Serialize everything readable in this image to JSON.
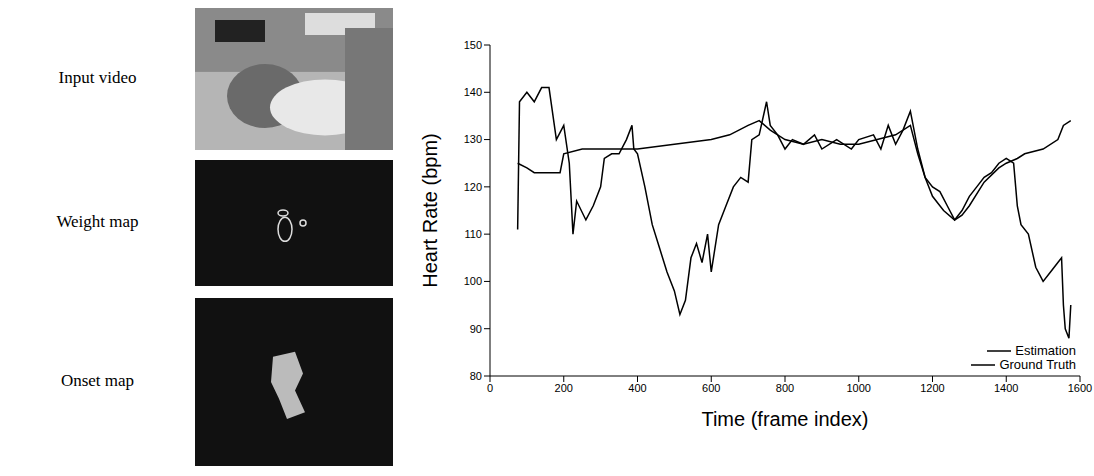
{
  "panels": [
    "Input video",
    "Weight map",
    "Onset map"
  ],
  "chart_data": {
    "type": "line",
    "x_label": "Time (frame index)",
    "y_label": "Heart Rate (bpm)",
    "xlim": [
      0,
      1600
    ],
    "xticks": [
      0,
      200,
      400,
      600,
      800,
      1000,
      1200,
      1400,
      1600
    ],
    "ylim": [
      80,
      150
    ],
    "yticks": [
      80,
      90,
      100,
      110,
      120,
      130,
      140,
      150
    ],
    "legend": "lower right",
    "grid": false,
    "series": [
      {
        "name": "Estimation",
        "color": "#000000",
        "x": [
          75,
          80,
          100,
          120,
          140,
          160,
          180,
          200,
          215,
          225,
          235,
          260,
          280,
          300,
          310,
          330,
          350,
          370,
          385,
          390,
          400,
          420,
          440,
          460,
          480,
          500,
          515,
          530,
          545,
          560,
          575,
          590,
          600,
          620,
          640,
          660,
          680,
          700,
          710,
          730,
          750,
          760,
          780,
          800,
          820,
          850,
          880,
          900,
          940,
          980,
          1000,
          1040,
          1060,
          1080,
          1100,
          1120,
          1140,
          1160,
          1180,
          1200,
          1220,
          1240,
          1260,
          1280,
          1300,
          1320,
          1340,
          1360,
          1380,
          1400,
          1420,
          1430,
          1440,
          1460,
          1480,
          1500,
          1520,
          1540,
          1550,
          1555,
          1560,
          1570,
          1575
        ],
        "values": [
          111,
          138,
          140,
          138,
          141,
          141,
          130,
          133,
          125,
          110,
          117,
          113,
          116,
          120,
          126,
          127,
          127,
          130,
          133,
          128,
          127,
          120,
          112,
          107,
          102,
          98,
          93,
          96,
          105,
          108,
          104,
          110,
          102,
          112,
          116,
          120,
          122,
          121,
          130,
          131,
          138,
          133,
          131,
          128,
          130,
          129,
          131,
          128,
          130,
          128,
          130,
          131,
          128,
          133,
          129,
          132,
          136,
          128,
          122,
          120,
          119,
          116,
          113,
          115,
          118,
          120,
          122,
          123,
          125,
          126,
          125,
          116,
          112,
          110,
          103,
          100,
          102,
          104,
          105,
          95,
          90,
          88,
          95
        ]
      },
      {
        "name": "Ground Truth",
        "color": "#000000",
        "x": [
          75,
          100,
          120,
          150,
          190,
          200,
          250,
          300,
          400,
          500,
          600,
          650,
          700,
          730,
          760,
          800,
          850,
          900,
          950,
          1000,
          1050,
          1100,
          1140,
          1160,
          1180,
          1200,
          1230,
          1260,
          1280,
          1300,
          1340,
          1380,
          1400,
          1430,
          1450,
          1500,
          1540,
          1555,
          1575
        ],
        "values": [
          125,
          124,
          123,
          123,
          123,
          127,
          128,
          128,
          128,
          129,
          130,
          131,
          133,
          134,
          132,
          130,
          129,
          130,
          129,
          129,
          130,
          131,
          133,
          127,
          122,
          118,
          115,
          113,
          114,
          116,
          121,
          124,
          125,
          126,
          127,
          128,
          130,
          133,
          134
        ]
      }
    ]
  }
}
